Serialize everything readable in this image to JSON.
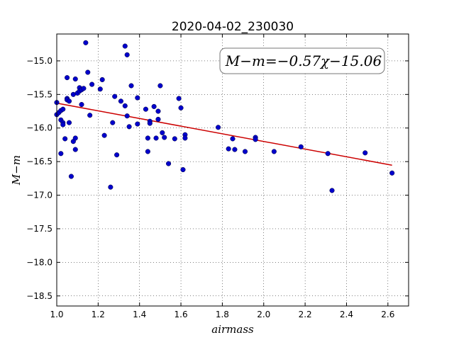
{
  "chart_data": {
    "type": "scatter",
    "title": "2020-04-02_230030",
    "xlabel": "airmass",
    "ylabel": "M−m",
    "xlim": [
      1.0,
      2.7
    ],
    "ylim": [
      -18.65,
      -14.6
    ],
    "y_inverted": false,
    "xticks": [
      "1.0",
      "1.2",
      "1.4",
      "1.6",
      "1.8",
      "2.0",
      "2.2",
      "2.4",
      "2.6"
    ],
    "xtick_values": [
      1.0,
      1.2,
      1.4,
      1.6,
      1.8,
      2.0,
      2.2,
      2.4,
      2.6
    ],
    "yticks": [
      "−15.0",
      "−15.5",
      "−16.0",
      "−16.5",
      "−17.0",
      "−17.5",
      "−18.0",
      "−18.5"
    ],
    "ytick_values": [
      -15.0,
      -15.5,
      -16.0,
      -16.5,
      -17.0,
      -17.5,
      -18.0,
      -18.5
    ],
    "grid": true,
    "annotation": "M−m=−0.57χ−15.06",
    "annotation_placement": "top-right",
    "point_color": "#0000cc",
    "fit_color": "#cc0000",
    "fit": {
      "slope": -0.57,
      "intercept": -15.06,
      "x_range": [
        1.0,
        2.62
      ]
    },
    "points": [
      [
        1.0,
        -15.62
      ],
      [
        1.0,
        -15.8
      ],
      [
        1.01,
        -15.77
      ],
      [
        1.02,
        -15.74
      ],
      [
        1.02,
        -16.38
      ],
      [
        1.02,
        -15.88
      ],
      [
        1.03,
        -15.92
      ],
      [
        1.03,
        -15.95
      ],
      [
        1.03,
        -15.72
      ],
      [
        1.04,
        -16.16
      ],
      [
        1.05,
        -15.25
      ],
      [
        1.05,
        -15.56
      ],
      [
        1.05,
        -15.58
      ],
      [
        1.06,
        -15.6
      ],
      [
        1.06,
        -15.92
      ],
      [
        1.07,
        -16.72
      ],
      [
        1.08,
        -15.5
      ],
      [
        1.08,
        -16.2
      ],
      [
        1.09,
        -15.27
      ],
      [
        1.09,
        -16.32
      ],
      [
        1.09,
        -16.15
      ],
      [
        1.1,
        -15.48
      ],
      [
        1.11,
        -15.4
      ],
      [
        1.11,
        -15.45
      ],
      [
        1.12,
        -15.65
      ],
      [
        1.12,
        -15.43
      ],
      [
        1.13,
        -15.41
      ],
      [
        1.14,
        -14.73
      ],
      [
        1.15,
        -15.17
      ],
      [
        1.16,
        -15.81
      ],
      [
        1.17,
        -15.35
      ],
      [
        1.21,
        -15.42
      ],
      [
        1.22,
        -15.28
      ],
      [
        1.23,
        -16.11
      ],
      [
        1.26,
        -16.88
      ],
      [
        1.27,
        -15.92
      ],
      [
        1.28,
        -15.53
      ],
      [
        1.29,
        -16.4
      ],
      [
        1.31,
        -15.6
      ],
      [
        1.33,
        -14.78
      ],
      [
        1.33,
        -15.67
      ],
      [
        1.34,
        -14.91
      ],
      [
        1.34,
        -15.82
      ],
      [
        1.35,
        -15.98
      ],
      [
        1.36,
        -15.37
      ],
      [
        1.39,
        -15.55
      ],
      [
        1.39,
        -15.94
      ],
      [
        1.43,
        -15.72
      ],
      [
        1.44,
        -16.35
      ],
      [
        1.44,
        -16.15
      ],
      [
        1.45,
        -15.9
      ],
      [
        1.45,
        -15.93
      ],
      [
        1.47,
        -15.68
      ],
      [
        1.48,
        -16.15
      ],
      [
        1.49,
        -15.87
      ],
      [
        1.49,
        -15.75
      ],
      [
        1.5,
        -15.37
      ],
      [
        1.51,
        -16.07
      ],
      [
        1.52,
        -16.14
      ],
      [
        1.54,
        -16.53
      ],
      [
        1.57,
        -16.16
      ],
      [
        1.59,
        -15.56
      ],
      [
        1.6,
        -15.7
      ],
      [
        1.61,
        -16.62
      ],
      [
        1.62,
        -16.1
      ],
      [
        1.62,
        -16.15
      ],
      [
        1.78,
        -15.99
      ],
      [
        1.83,
        -16.31
      ],
      [
        1.85,
        -16.16
      ],
      [
        1.86,
        -16.32
      ],
      [
        1.91,
        -16.35
      ],
      [
        1.96,
        -16.14
      ],
      [
        1.96,
        -16.17
      ],
      [
        2.05,
        -16.35
      ],
      [
        2.18,
        -16.28
      ],
      [
        2.31,
        -16.38
      ],
      [
        2.33,
        -16.93
      ],
      [
        2.49,
        -16.37
      ],
      [
        2.62,
        -16.67
      ]
    ]
  }
}
